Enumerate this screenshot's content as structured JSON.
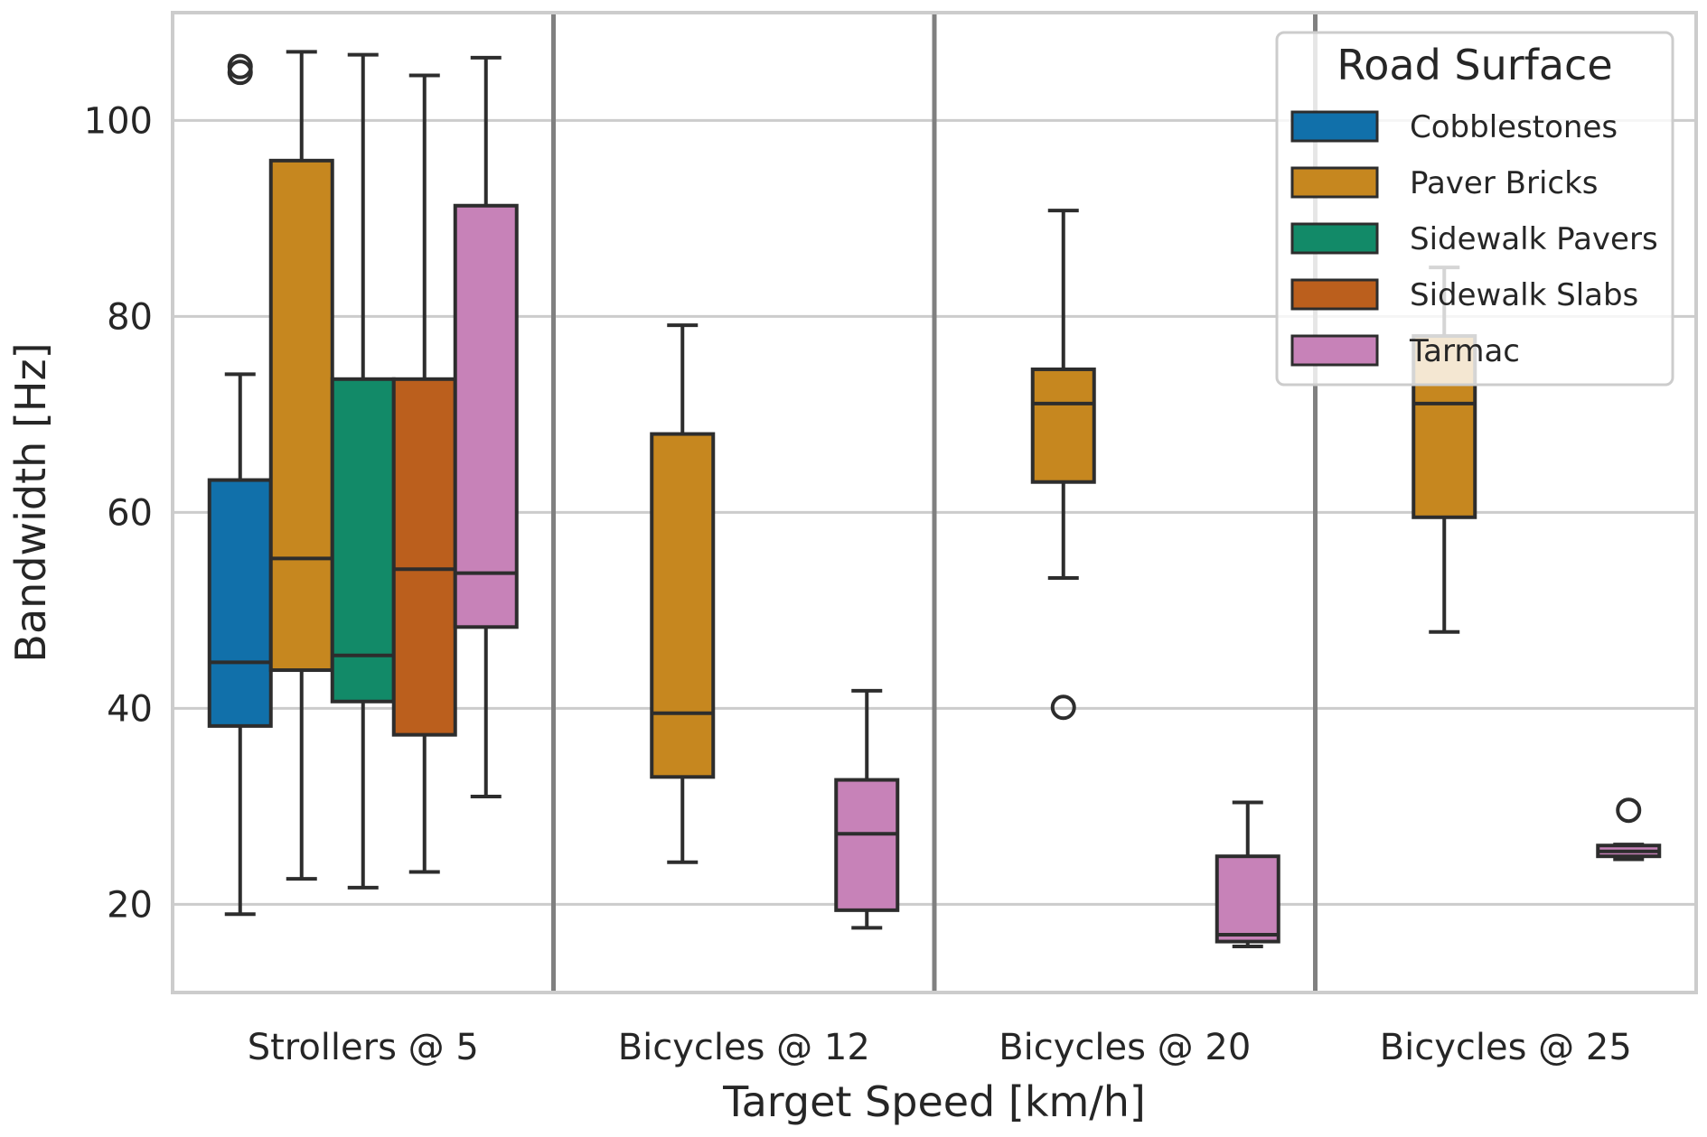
{
  "chart_data": {
    "type": "box",
    "xlabel": "Target Speed [km/h]",
    "ylabel": "Bandwidth [Hz]",
    "ylim": [
      11,
      111
    ],
    "yticks": [
      20,
      40,
      60,
      80,
      100
    ],
    "categories": [
      "Strollers @ 5",
      "Bicycles @ 12",
      "Bicycles @ 20",
      "Bicycles @ 25"
    ],
    "grid": true,
    "legend": {
      "title": "Road Surface",
      "placement": "top-right",
      "entries": [
        {
          "name": "Cobblestones",
          "color": "#1170aa"
        },
        {
          "name": "Paver Bricks",
          "color": "#c6871f"
        },
        {
          "name": "Sidewalk Pavers",
          "color": "#128a68"
        },
        {
          "name": "Sidewalk Slabs",
          "color": "#bb5f1d"
        },
        {
          "name": "Tarmac",
          "color": "#c782b8"
        }
      ]
    },
    "boxes": [
      {
        "category": "Strollers @ 5",
        "series": "Cobblestones",
        "whislo": 19.0,
        "q1": 38.2,
        "med": 44.7,
        "q3": 63.3,
        "whishi": 74.1,
        "fliers": [
          104.9,
          105.5
        ]
      },
      {
        "category": "Strollers @ 5",
        "series": "Paver Bricks",
        "whislo": 22.6,
        "q1": 43.9,
        "med": 55.3,
        "q3": 95.9,
        "whishi": 107.0,
        "fliers": []
      },
      {
        "category": "Strollers @ 5",
        "series": "Sidewalk Pavers",
        "whislo": 21.7,
        "q1": 40.7,
        "med": 45.4,
        "q3": 73.6,
        "whishi": 106.7,
        "fliers": []
      },
      {
        "category": "Strollers @ 5",
        "series": "Sidewalk Slabs",
        "whislo": 23.3,
        "q1": 37.3,
        "med": 54.2,
        "q3": 73.6,
        "whishi": 104.6,
        "fliers": []
      },
      {
        "category": "Strollers @ 5",
        "series": "Tarmac",
        "whislo": 31.0,
        "q1": 48.3,
        "med": 53.8,
        "q3": 91.3,
        "whishi": 106.4,
        "fliers": []
      },
      {
        "category": "Bicycles @ 12",
        "series": "Paver Bricks",
        "whislo": 24.3,
        "q1": 33.0,
        "med": 39.5,
        "q3": 68.0,
        "whishi": 79.1,
        "fliers": []
      },
      {
        "category": "Bicycles @ 12",
        "series": "Tarmac",
        "whislo": 17.6,
        "q1": 19.4,
        "med": 27.2,
        "q3": 32.7,
        "whishi": 41.8,
        "fliers": []
      },
      {
        "category": "Bicycles @ 20",
        "series": "Paver Bricks",
        "whislo": 53.3,
        "q1": 63.1,
        "med": 71.1,
        "q3": 74.6,
        "whishi": 90.8,
        "fliers": [
          40.1
        ]
      },
      {
        "category": "Bicycles @ 20",
        "series": "Tarmac",
        "whislo": 15.7,
        "q1": 16.2,
        "med": 16.9,
        "q3": 24.9,
        "whishi": 30.4,
        "fliers": []
      },
      {
        "category": "Bicycles @ 25",
        "series": "Paver Bricks",
        "whislo": 47.8,
        "q1": 59.5,
        "med": 71.1,
        "q3": 78.0,
        "whishi": 85.0,
        "fliers": []
      },
      {
        "category": "Bicycles @ 25",
        "series": "Tarmac",
        "whislo": 24.6,
        "q1": 24.9,
        "med": 25.4,
        "q3": 26.0,
        "whishi": 26.1,
        "fliers": [
          29.6
        ]
      }
    ]
  }
}
